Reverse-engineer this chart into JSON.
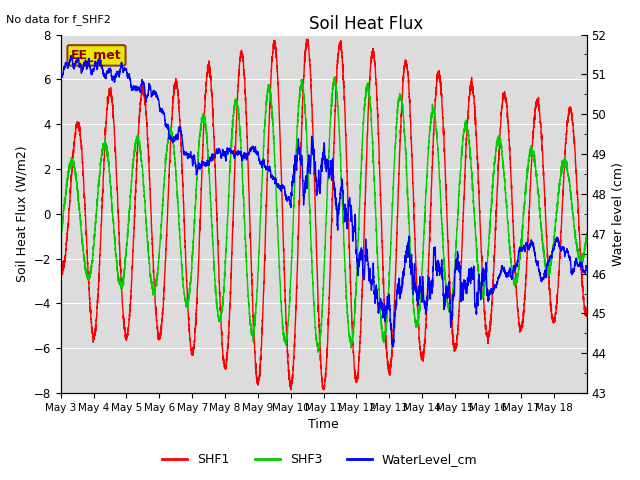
{
  "title": "Soil Heat Flux",
  "no_data_text": "No data for f_SHF2",
  "ylabel_left": "Soil Heat Flux (W/m2)",
  "ylabel_right": "Water level (cm)",
  "xlabel": "Time",
  "ylim_left": [
    -8,
    8
  ],
  "ylim_right": [
    43.0,
    52.0
  ],
  "background_color": "#ffffff",
  "plot_bg_color": "#dcdcdc",
  "grid_color": "#ffffff",
  "box_label": "EE_met",
  "box_facecolor": "#e8e800",
  "box_edgecolor": "#8B4513",
  "box_text_color": "#8B0000",
  "shf1_color": "#ff0000",
  "shf3_color": "#00cc00",
  "water_color": "#0000ff",
  "line_width": 1.0,
  "x_ticks": [
    "May 3",
    "May 4",
    "May 5",
    "May 6",
    "May 7",
    "May 8",
    "May 9",
    "May 10",
    "May 11",
    "May 12",
    "May 13",
    "May 14",
    "May 15",
    "May 16",
    "May 17",
    "May 18"
  ],
  "yticks_left": [
    -8,
    -6,
    -4,
    -2,
    0,
    2,
    4,
    6,
    8
  ],
  "yticks_right": [
    43.0,
    44.0,
    45.0,
    46.0,
    47.0,
    48.0,
    49.0,
    50.0,
    51.0,
    52.0
  ],
  "n_days": 16,
  "ppd": 288
}
